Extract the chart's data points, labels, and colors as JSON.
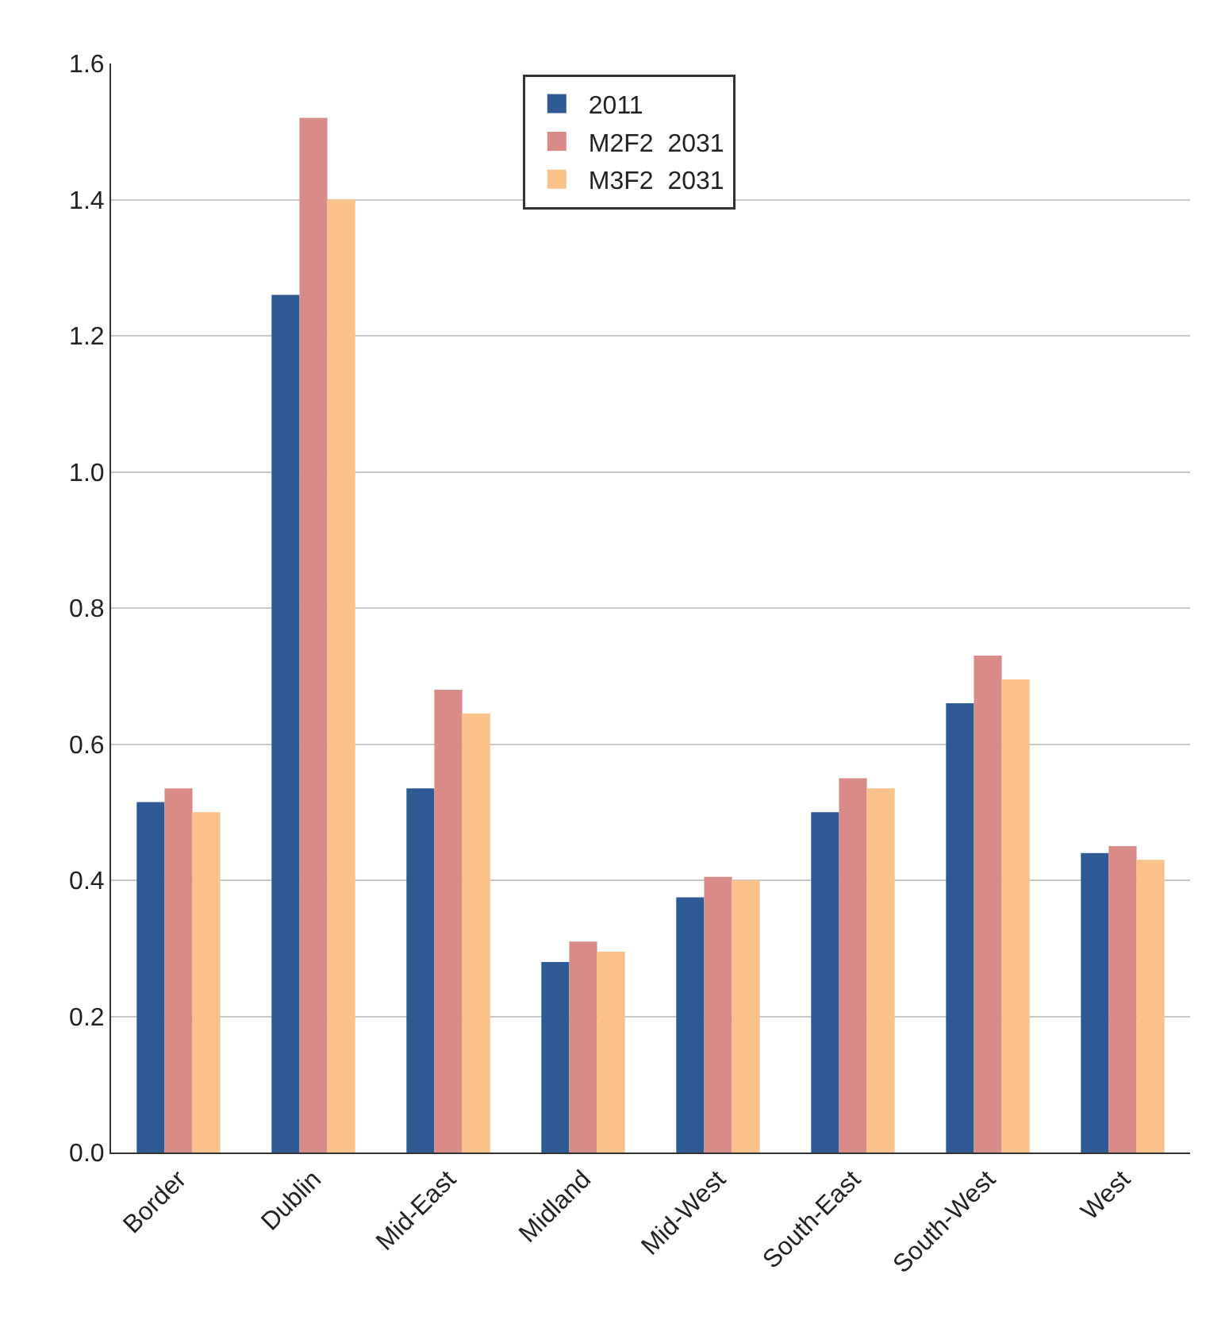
{
  "chart_data": {
    "type": "bar",
    "categories": [
      "Border",
      "Dublin",
      "Mid-East",
      "Midland",
      "Mid-West",
      "South-East",
      "South-West",
      "West"
    ],
    "series": [
      {
        "name": "2011",
        "color": "#2e5a93",
        "values": [
          0.515,
          1.26,
          0.535,
          0.28,
          0.375,
          0.5,
          0.66,
          0.44
        ]
      },
      {
        "name": "M2F2  2031",
        "color": "#d98b88",
        "values": [
          0.535,
          1.52,
          0.68,
          0.31,
          0.405,
          0.55,
          0.73,
          0.45
        ]
      },
      {
        "name": "M3F2  2031",
        "color": "#fac18a",
        "values": [
          0.5,
          1.4,
          0.645,
          0.295,
          0.4,
          0.535,
          0.695,
          0.43
        ]
      }
    ],
    "ylim": [
      0,
      1.6
    ],
    "yticks": [
      {
        "value": 0,
        "label": "0.0"
      },
      {
        "value": 0.2,
        "label": "0.2"
      },
      {
        "value": 0.4,
        "label": "0.4"
      },
      {
        "value": 0.6,
        "label": "0.6"
      },
      {
        "value": 0.8,
        "label": "0.8"
      },
      {
        "value": 1.0,
        "label": "1.0"
      },
      {
        "value": 1.2,
        "label": "1.2"
      },
      {
        "value": 1.4,
        "label": "1.4"
      },
      {
        "value": 1.6,
        "label": "1.6"
      }
    ],
    "grid": "y",
    "legend": "top"
  }
}
